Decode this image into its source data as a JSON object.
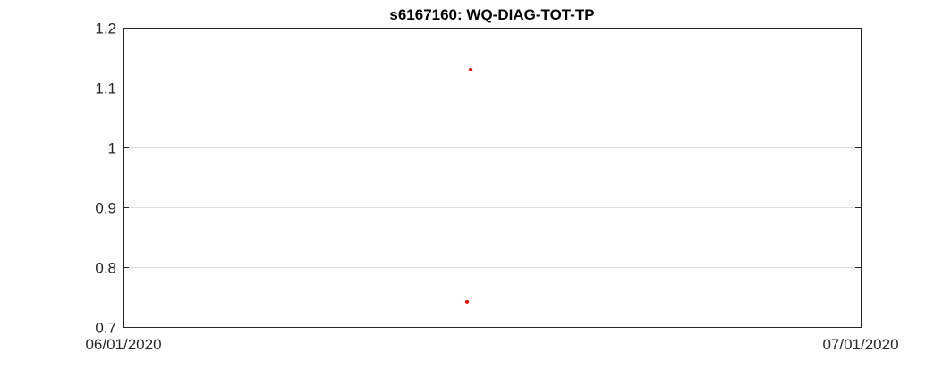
{
  "chart_data": {
    "type": "scatter",
    "title": "s6167160: WQ-DIAG-TOT-TP",
    "xlabel": "",
    "ylabel": "",
    "xlim": [
      "2020-06-01",
      "2020-07-01"
    ],
    "ylim": [
      0.7,
      1.2
    ],
    "x_ticks": [
      "06/01/2020",
      "07/01/2020"
    ],
    "y_ticks": [
      "0.7",
      "0.8",
      "0.9",
      "1",
      "1.1",
      "1.2"
    ],
    "y_tick_values": [
      0.7,
      0.8,
      0.9,
      1.0,
      1.1,
      1.2
    ],
    "grid": "horizontal",
    "marker_color": "#ff0000",
    "series": [
      {
        "x": [
          "2020-06-15",
          "2020-06-15"
        ],
        "y": [
          1.13,
          0.742
        ]
      }
    ]
  }
}
